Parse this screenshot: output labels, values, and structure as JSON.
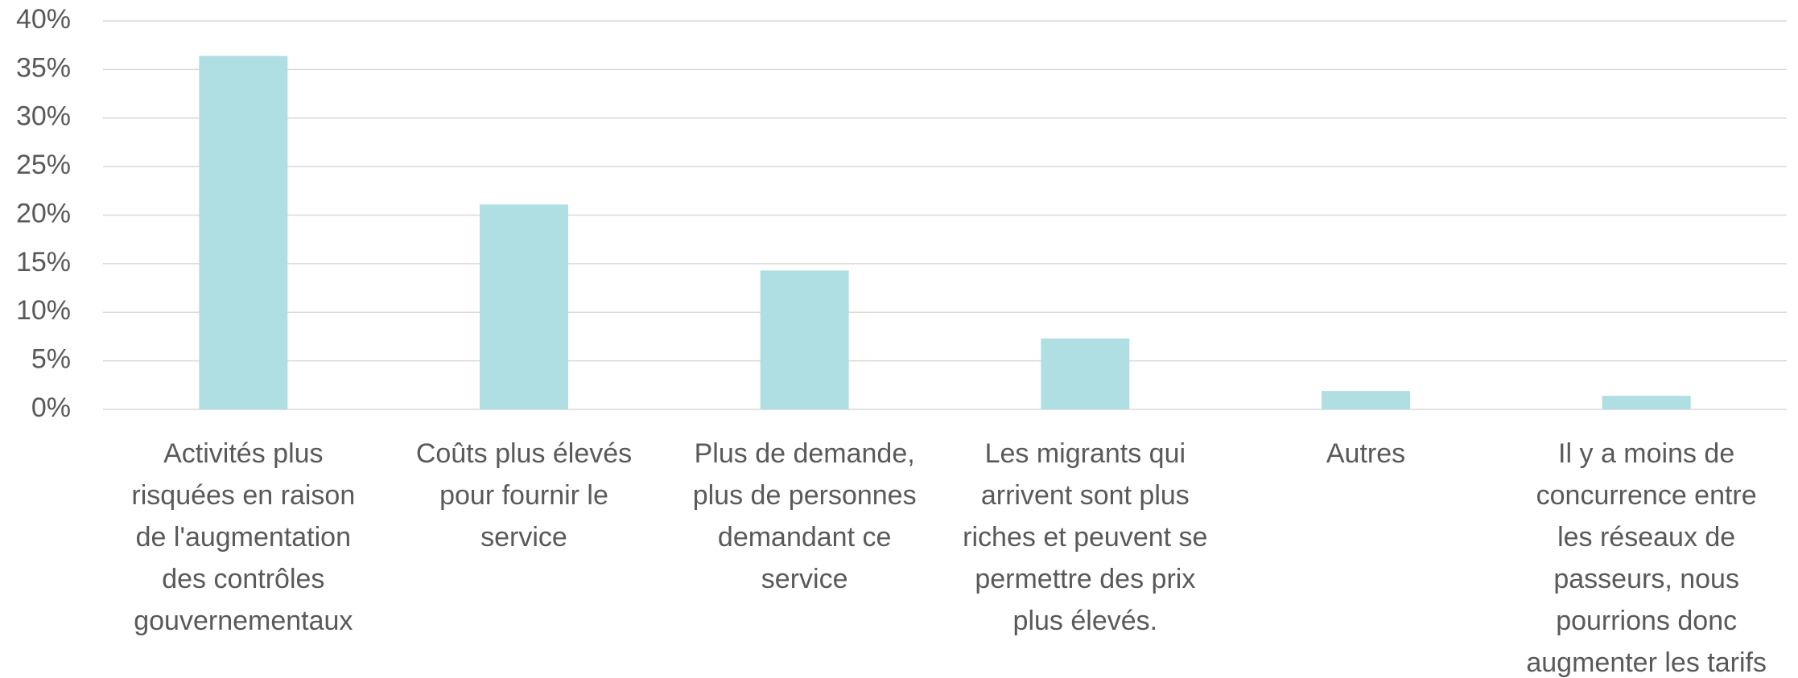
{
  "chart_data": {
    "type": "bar",
    "categories": [
      "Activités plus risquées en raison de l'augmentation des contrôles gouvernementaux",
      "Coûts plus élevés pour fournir le service",
      "Plus de demande, plus de personnes demandant ce service",
      "Les migrants qui arrivent sont plus riches et peuvent se permettre des prix plus élevés.",
      "Autres",
      "Il y a moins de concurrence entre les réseaux de passeurs, nous pourrions donc augmenter les tarifs"
    ],
    "values": [
      36.4,
      21.1,
      14.3,
      7.3,
      1.9,
      1.4
    ],
    "color": "#b0dfe3",
    "ylim": [
      0,
      40
    ],
    "yticks": [
      {
        "value": 0,
        "label": "0%"
      },
      {
        "value": 5,
        "label": "5%"
      },
      {
        "value": 10,
        "label": "10%"
      },
      {
        "value": 15,
        "label": "15%"
      },
      {
        "value": 20,
        "label": "20%"
      },
      {
        "value": 25,
        "label": "25%"
      },
      {
        "value": 30,
        "label": "30%"
      },
      {
        "value": 35,
        "label": "35%"
      },
      {
        "value": 40,
        "label": "40%"
      }
    ],
    "grid": true
  }
}
